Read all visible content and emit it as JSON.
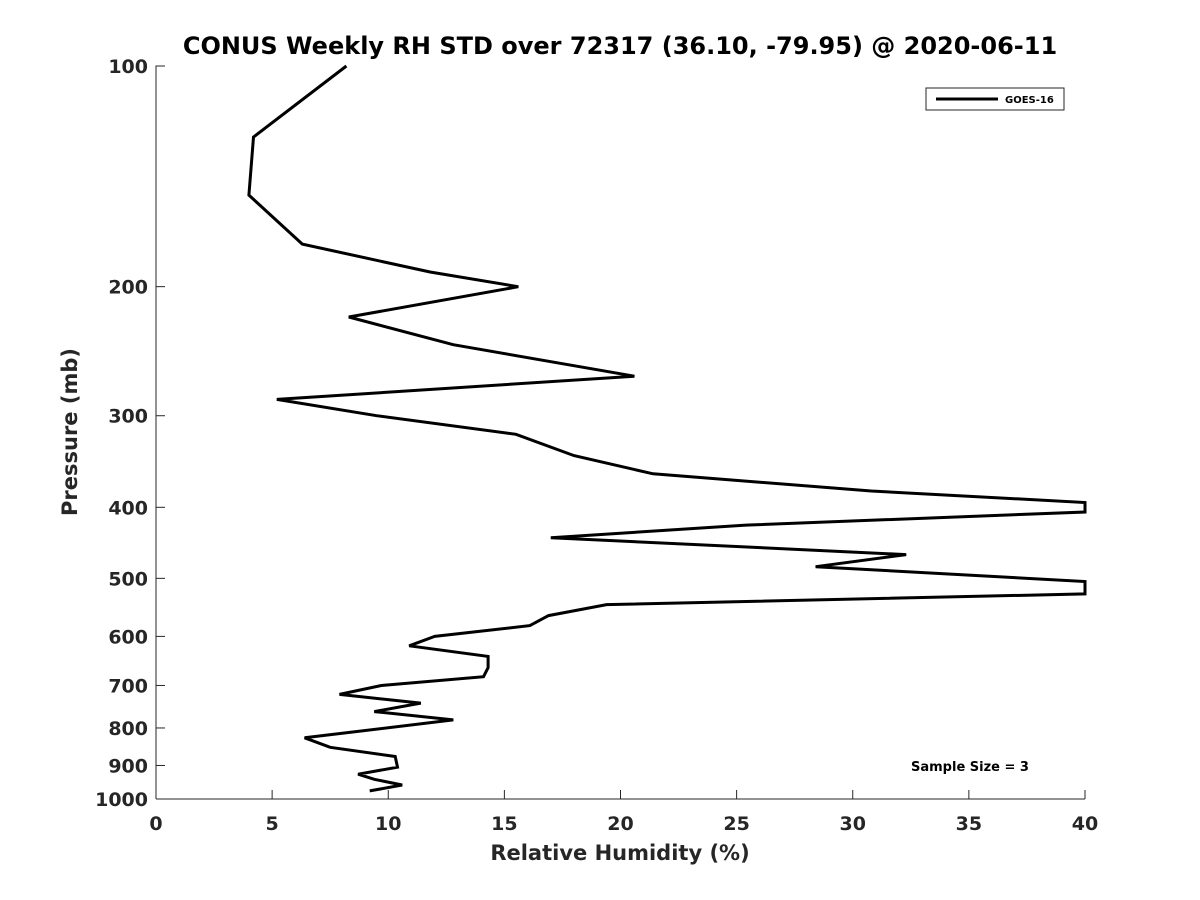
{
  "chart_data": {
    "type": "line",
    "title": "CONUS Weekly RH STD over 72317 (36.10, -79.95) @ 2020-06-11",
    "xlabel": "Relative Humidity (%)",
    "ylabel": "Pressure (mb)",
    "xlim": [
      0,
      40
    ],
    "ylim": [
      100,
      1000
    ],
    "y_scale": "log",
    "y_reversed": true,
    "grid": false,
    "legend_position": "top-right",
    "x_ticks": [
      "0",
      "5",
      "10",
      "15",
      "20",
      "25",
      "30",
      "35",
      "40"
    ],
    "y_ticks": [
      "100",
      "200",
      "300",
      "400",
      "500",
      "600",
      "700",
      "800",
      "900",
      "1000"
    ],
    "series": [
      {
        "name": "GOES-16",
        "color": "#000000",
        "points": [
          [
            8.2,
            100
          ],
          [
            4.2,
            125
          ],
          [
            4.0,
            150
          ],
          [
            6.3,
            175
          ],
          [
            11.8,
            191
          ],
          [
            15.6,
            200
          ],
          [
            8.3,
            220
          ],
          [
            12.8,
            240
          ],
          [
            20.6,
            265
          ],
          [
            5.2,
            285
          ],
          [
            9.5,
            300
          ],
          [
            15.5,
            318
          ],
          [
            18.0,
            340
          ],
          [
            21.4,
            360
          ],
          [
            30.8,
            380
          ],
          [
            40.0,
            394
          ],
          [
            40.0,
            406
          ],
          [
            25.4,
            423
          ],
          [
            17.0,
            440
          ],
          [
            32.3,
            464
          ],
          [
            28.4,
            482
          ],
          [
            40.0,
            505
          ],
          [
            40.0,
            525
          ],
          [
            19.4,
            543
          ],
          [
            16.9,
            562
          ],
          [
            16.1,
            580
          ],
          [
            12.0,
            600
          ],
          [
            10.9,
            618
          ],
          [
            14.3,
            639
          ],
          [
            14.3,
            662
          ],
          [
            14.1,
            681
          ],
          [
            9.7,
            700
          ],
          [
            7.9,
            720
          ],
          [
            11.4,
            740
          ],
          [
            9.4,
            760
          ],
          [
            12.8,
            780
          ],
          [
            6.4,
            825
          ],
          [
            7.5,
            850
          ],
          [
            10.3,
            875
          ],
          [
            10.4,
            905
          ],
          [
            8.7,
            925
          ],
          [
            9.4,
            940
          ],
          [
            10.6,
            957
          ],
          [
            9.2,
            975
          ]
        ]
      }
    ],
    "annotation": "Sample Size = 3"
  }
}
